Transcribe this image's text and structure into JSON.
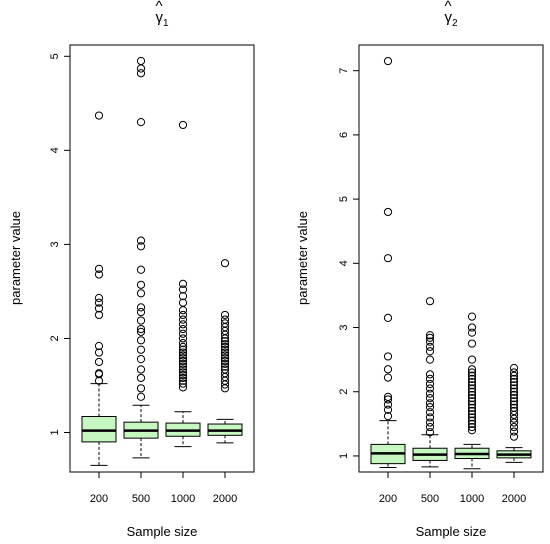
{
  "chart_data": [
    {
      "type": "boxplot",
      "title_main": "γ",
      "title_sub": "1",
      "xlabel": "Sample size",
      "ylabel": "parameter value",
      "categories": [
        "200",
        "500",
        "1000",
        "2000"
      ],
      "ylim": [
        0.58,
        5.12
      ],
      "yticks": [
        1,
        2,
        3,
        4,
        5
      ],
      "box_color": "#c7f7c1",
      "boxes": [
        {
          "whisker_low": 0.65,
          "q1": 0.9,
          "median": 1.02,
          "q3": 1.17,
          "whisker_high": 1.52,
          "outliers": [
            1.55,
            1.62,
            1.63,
            1.75,
            1.85,
            1.92,
            2.25,
            2.32,
            2.38,
            2.43,
            2.68,
            2.74,
            4.37
          ]
        },
        {
          "whisker_low": 0.73,
          "q1": 0.94,
          "median": 1.02,
          "q3": 1.11,
          "whisker_high": 1.29,
          "outliers": [
            1.38,
            1.47,
            1.58,
            1.67,
            1.78,
            1.88,
            1.98,
            2.07,
            2.1,
            2.19,
            2.28,
            2.33,
            2.48,
            2.57,
            2.73,
            2.98,
            3.04,
            4.3,
            4.82,
            4.87,
            4.95
          ]
        },
        {
          "whisker_low": 0.85,
          "q1": 0.96,
          "median": 1.02,
          "q3": 1.1,
          "whisker_high": 1.22,
          "outliers": [
            1.48,
            1.52,
            1.55,
            1.58,
            1.61,
            1.64,
            1.67,
            1.7,
            1.73,
            1.76,
            1.79,
            1.82,
            1.85,
            1.88,
            1.91,
            1.95,
            2.0,
            2.05,
            2.1,
            2.15,
            2.2,
            2.25,
            2.3,
            2.38,
            2.45,
            2.52,
            2.58,
            4.27
          ]
        },
        {
          "whisker_low": 0.89,
          "q1": 0.97,
          "median": 1.02,
          "q3": 1.09,
          "whisker_high": 1.14,
          "outliers": [
            1.47,
            1.51,
            1.55,
            1.59,
            1.63,
            1.67,
            1.7,
            1.73,
            1.76,
            1.79,
            1.82,
            1.85,
            1.88,
            1.91,
            1.94,
            1.97,
            2.0,
            2.04,
            2.08,
            2.12,
            2.16,
            2.2,
            2.25,
            2.8
          ]
        }
      ]
    },
    {
      "type": "boxplot",
      "title_main": "γ",
      "title_sub": "2",
      "xlabel": "Sample size",
      "ylabel": "parameter value",
      "categories": [
        "200",
        "500",
        "1000",
        "2000"
      ],
      "ylim": [
        0.75,
        7.4
      ],
      "yticks": [
        1,
        2,
        3,
        4,
        5,
        6,
        7
      ],
      "box_color": "#c7f7c1",
      "boxes": [
        {
          "whisker_low": 0.82,
          "q1": 0.88,
          "median": 1.04,
          "q3": 1.18,
          "whisker_high": 1.55,
          "outliers": [
            1.62,
            1.72,
            1.8,
            1.88,
            1.92,
            2.22,
            2.35,
            2.55,
            3.15,
            4.08,
            4.8,
            7.15
          ]
        },
        {
          "whisker_low": 0.83,
          "q1": 0.93,
          "median": 1.02,
          "q3": 1.12,
          "whisker_high": 1.33,
          "outliers": [
            1.37,
            1.45,
            1.52,
            1.6,
            1.68,
            1.76,
            1.82,
            1.9,
            1.97,
            2.05,
            2.12,
            2.2,
            2.27,
            2.5,
            2.63,
            2.7,
            2.78,
            2.84,
            2.88,
            3.41
          ]
        },
        {
          "whisker_low": 0.8,
          "q1": 0.96,
          "median": 1.03,
          "q3": 1.12,
          "whisker_high": 1.18,
          "outliers": [
            1.4,
            1.45,
            1.5,
            1.55,
            1.6,
            1.65,
            1.7,
            1.75,
            1.8,
            1.85,
            1.9,
            1.95,
            2.0,
            2.05,
            2.1,
            2.15,
            2.2,
            2.25,
            2.3,
            2.35,
            2.5,
            2.75,
            2.92,
            3.0,
            3.17
          ]
        },
        {
          "whisker_low": 0.9,
          "q1": 0.97,
          "median": 1.02,
          "q3": 1.08,
          "whisker_high": 1.13,
          "outliers": [
            1.3,
            1.38,
            1.45,
            1.52,
            1.58,
            1.64,
            1.7,
            1.75,
            1.8,
            1.85,
            1.9,
            1.95,
            2.0,
            2.05,
            2.1,
            2.15,
            2.2,
            2.25,
            2.3,
            2.37
          ]
        }
      ]
    }
  ]
}
